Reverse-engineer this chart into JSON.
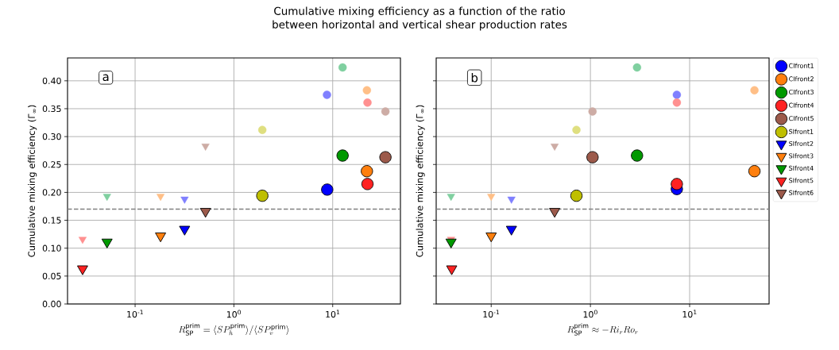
{
  "chart_data": [
    {
      "type": "scatter",
      "title": "Cumulative mixing efficiency as a function of the ratio between horizontal and vertical shear production rates",
      "xlabel": "R_{\\mathrm{SP}}^{\\mathrm{prim}} = \\langle SP_h^{\\mathrm{prim}}\\rangle/\\langle SP_v^{\\mathrm{prim}}\\rangle",
      "ylabel": "Cumulative mixing efficiency (Γ$_{∞}$)",
      "annotations": [
        "a"
      ],
      "log": "x",
      "grid": true,
      "legend": false,
      "xlim": [
        0.0207,
        48.5
      ],
      "ylim": [
        0,
        0.441
      ],
      "xticks": [
        {
          "value": 0.1,
          "label": "10$^{-1}$"
        },
        {
          "value": 1,
          "label": "10$^{0}$"
        },
        {
          "value": 10,
          "label": "10$^{1}$"
        }
      ],
      "yticks": [
        {
          "value": 0,
          "label": "0.00"
        },
        {
          "value": 0.05,
          "label": "0.05"
        },
        {
          "value": 0.1,
          "label": "0.10"
        },
        {
          "value": 0.15,
          "label": "0.15"
        },
        {
          "value": 0.2,
          "label": "0.20"
        },
        {
          "value": 0.25,
          "label": "0.25"
        },
        {
          "value": 0.3,
          "label": "0.30"
        },
        {
          "value": 0.35,
          "label": "0.35"
        },
        {
          "value": 0.4,
          "label": "0.40"
        }
      ],
      "ref_lines": [
        {
          "axis": "y",
          "value": 0.17,
          "color": "#808080",
          "line_style": "dashed"
        }
      ],
      "series": [
        {
          "color": "#0000ff",
          "marker": "circle",
          "x": [
            8.8
          ],
          "values": [
            0.205
          ]
        },
        {
          "color": "#ff7f0e",
          "marker": "circle",
          "x": [
            22.2
          ],
          "values": [
            0.238
          ]
        },
        {
          "color": "#009900",
          "marker": "circle",
          "x": [
            12.6
          ],
          "values": [
            0.266
          ]
        },
        {
          "color": "#ff2222",
          "marker": "circle",
          "x": [
            22.5
          ],
          "values": [
            0.215
          ]
        },
        {
          "color": "#9c5a4b",
          "marker": "circle",
          "x": [
            34.2
          ],
          "values": [
            0.263
          ]
        },
        {
          "color": "#bfbf00",
          "marker": "circle",
          "x": [
            1.94
          ],
          "values": [
            0.194
          ]
        },
        {
          "color": "#0000ff",
          "marker": "triangle",
          "x": [
            0.317
          ],
          "values": [
            0.134
          ]
        },
        {
          "color": "#ff7f0e",
          "marker": "triangle",
          "x": [
            0.181
          ],
          "values": [
            0.122
          ]
        },
        {
          "color": "#009900",
          "marker": "triangle",
          "x": [
            0.052
          ],
          "values": [
            0.111
          ]
        },
        {
          "color": "#ff2222",
          "marker": "triangle",
          "x": [
            0.0294
          ],
          "values": [
            0.063
          ]
        },
        {
          "color": "#9c5a4b",
          "marker": "triangle",
          "x": [
            0.516
          ],
          "values": [
            0.166
          ]
        },
        {
          "color": "#8080ff",
          "marker": "circle",
          "x": [
            8.75
          ],
          "values": [
            0.375
          ]
        },
        {
          "color": "#ffbf87",
          "marker": "circle",
          "x": [
            22.2
          ],
          "values": [
            0.383
          ]
        },
        {
          "color": "#80d0a0",
          "marker": "circle",
          "x": [
            12.6
          ],
          "values": [
            0.424
          ]
        },
        {
          "color": "#ff9090",
          "marker": "circle",
          "x": [
            22.5
          ],
          "values": [
            0.361
          ]
        },
        {
          "color": "#cdaca5",
          "marker": "circle",
          "x": [
            34.2
          ],
          "values": [
            0.345
          ]
        },
        {
          "color": "#dfdf80",
          "marker": "circle",
          "x": [
            1.94
          ],
          "values": [
            0.312
          ]
        },
        {
          "color": "#8080ff",
          "marker": "triangle",
          "x": [
            0.317
          ],
          "values": [
            0.188
          ]
        },
        {
          "color": "#ffbf87",
          "marker": "triangle",
          "x": [
            0.181
          ],
          "values": [
            0.193
          ]
        },
        {
          "color": "#80d0a0",
          "marker": "triangle",
          "x": [
            0.052
          ],
          "values": [
            0.193
          ]
        },
        {
          "color": "#ff9090",
          "marker": "triangle",
          "x": [
            0.0294
          ],
          "values": [
            0.116
          ]
        },
        {
          "color": "#cdaca5",
          "marker": "triangle",
          "x": [
            0.516
          ],
          "values": [
            0.283
          ]
        }
      ]
    },
    {
      "type": "scatter",
      "xlabel": "R_{\\mathrm{SP}}^{\\mathrm{prim}} \\approx -Ri_r Ro_r",
      "ylabel": "Cumulative mixing efficiency (Γ$_{∞}$)",
      "annotations": [
        "b"
      ],
      "log": "x",
      "grid": true,
      "legend": "right",
      "tick_labels": "x",
      "xlim": [
        0.0279,
        63.2
      ],
      "ylim": [
        0,
        0.441
      ],
      "xticks": [
        {
          "value": 0.1,
          "label": "10$^{-1}$"
        },
        {
          "value": 1,
          "label": "10$^{0}$"
        },
        {
          "value": 10,
          "label": "10$^{1}$"
        }
      ],
      "yticks": [
        0,
        0.05,
        0.1,
        0.15,
        0.2,
        0.25,
        0.3,
        0.35,
        0.4
      ],
      "ref_lines": [
        {
          "axis": "y",
          "value": 0.17,
          "color": "#808080",
          "line_style": "dashed"
        }
      ],
      "series": [
        {
          "color": "#8080ff",
          "marker": "circle",
          "x": [
            7.43
          ],
          "values": [
            0.375
          ]
        },
        {
          "color": "#ffbf87",
          "marker": "circle",
          "x": [
            45.0
          ],
          "values": [
            0.383
          ]
        },
        {
          "color": "#80d0a0",
          "marker": "circle",
          "x": [
            2.95
          ],
          "values": [
            0.424
          ]
        },
        {
          "color": "#ff9090",
          "marker": "circle",
          "x": [
            7.43
          ],
          "values": [
            0.361
          ]
        },
        {
          "color": "#cdaca5",
          "marker": "circle",
          "x": [
            1.05
          ],
          "values": [
            0.345
          ]
        },
        {
          "color": "#dfdf80",
          "marker": "circle",
          "x": [
            0.723
          ],
          "values": [
            0.312
          ]
        },
        {
          "color": "#8080ff",
          "marker": "triangle",
          "x": [
            0.16
          ],
          "values": [
            0.188
          ]
        },
        {
          "color": "#ffbf87",
          "marker": "triangle",
          "x": [
            0.1
          ],
          "values": [
            0.193
          ]
        },
        {
          "color": "#80d0a0",
          "marker": "triangle",
          "x": [
            0.0394
          ],
          "values": [
            0.193
          ]
        },
        {
          "color": "#ff9090",
          "marker": "triangle",
          "x": [
            0.0394
          ],
          "values": [
            0.116
          ]
        },
        {
          "color": "#cdaca5",
          "marker": "triangle",
          "x": [
            0.436
          ],
          "values": [
            0.283
          ]
        },
        {
          "name": "CIfront1",
          "color": "#0000ff",
          "marker": "circle",
          "x": [
            7.43
          ],
          "values": [
            0.206
          ]
        },
        {
          "name": "CIfront2",
          "color": "#ff7f0e",
          "marker": "circle",
          "x": [
            45.0
          ],
          "values": [
            0.238
          ]
        },
        {
          "name": "CIfront3",
          "color": "#009900",
          "marker": "circle",
          "x": [
            2.95
          ],
          "values": [
            0.266
          ]
        },
        {
          "name": "CIfront4",
          "color": "#ff2222",
          "marker": "circle",
          "x": [
            7.43
          ],
          "values": [
            0.215
          ]
        },
        {
          "name": "CIfront5",
          "color": "#9c5a4b",
          "marker": "circle",
          "x": [
            1.05
          ],
          "values": [
            0.263
          ]
        },
        {
          "name": "SIfront1",
          "color": "#bfbf00",
          "marker": "circle",
          "x": [
            0.723
          ],
          "values": [
            0.194
          ]
        },
        {
          "name": "SIfront2",
          "color": "#0000ff",
          "marker": "triangle",
          "x": [
            0.16
          ],
          "values": [
            0.134
          ]
        },
        {
          "name": "SIfront3",
          "color": "#ff7f0e",
          "marker": "triangle",
          "x": [
            0.1
          ],
          "values": [
            0.122
          ]
        },
        {
          "name": "SIfront4",
          "color": "#009900",
          "marker": "triangle",
          "x": [
            0.0394
          ],
          "values": [
            0.111
          ]
        },
        {
          "name": "SIfront5",
          "color": "#ff2222",
          "marker": "triangle",
          "x": [
            0.04
          ],
          "values": [
            0.063
          ]
        },
        {
          "name": "SIfront6",
          "color": "#9c5a4b",
          "marker": "triangle",
          "x": [
            0.436
          ],
          "values": [
            0.166
          ]
        }
      ]
    }
  ]
}
